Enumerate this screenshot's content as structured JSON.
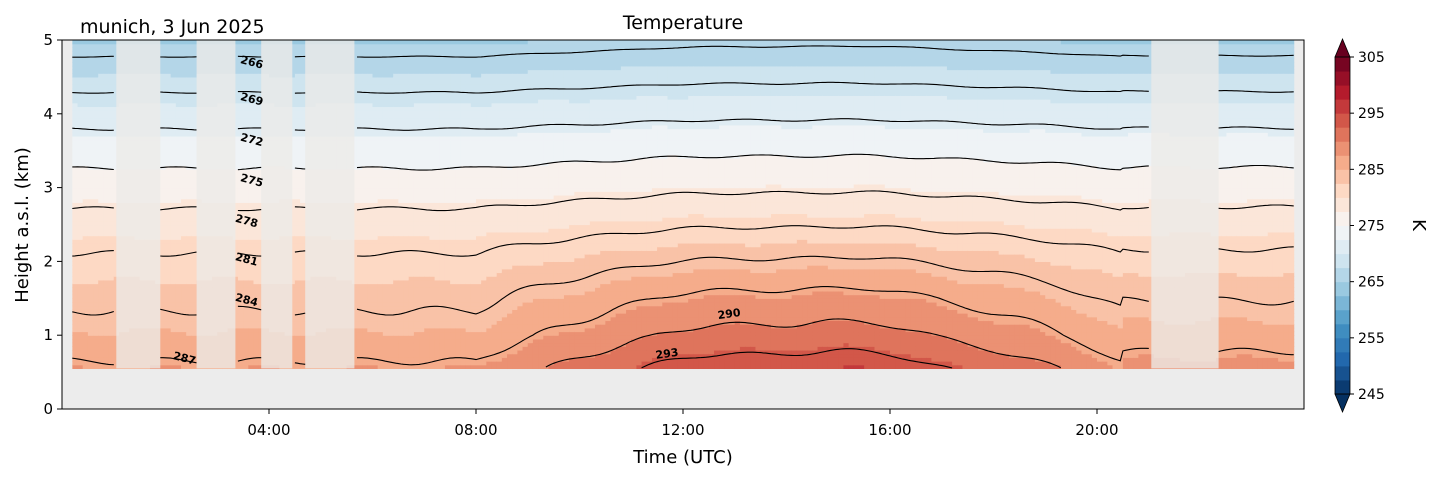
{
  "chart_data": {
    "type": "heatmap",
    "title": "Temperature",
    "subtitle": "munich, 3 Jun 2025",
    "xlabel": "Time (UTC)",
    "ylabel": "Height a.s.l. (km)",
    "xlim_hours": [
      0,
      24
    ],
    "ylim_km": [
      0,
      5
    ],
    "x_ticks": [
      {
        "hour": 4,
        "label": "04:00"
      },
      {
        "hour": 8,
        "label": "08:00"
      },
      {
        "hour": 12,
        "label": "12:00"
      },
      {
        "hour": 16,
        "label": "16:00"
      },
      {
        "hour": 20,
        "label": "20:00"
      }
    ],
    "y_ticks": [
      0,
      1,
      2,
      3,
      4,
      5
    ],
    "data_bottom_km": 0.55,
    "data_top_km": 5,
    "data_start_hour": 0.2,
    "data_end_hour": 23.8,
    "colorbar": {
      "label": "K",
      "min": 245,
      "max": 305,
      "step": 2.5,
      "ticks": [
        245,
        255,
        265,
        275,
        285,
        295,
        305
      ],
      "extend": "both",
      "colormap": "RdBu_r"
    },
    "temperature_profile": {
      "description_units": "K",
      "height_km": [
        0.55,
        1.0,
        1.5,
        2.0,
        2.5,
        3.0,
        3.5,
        4.0,
        4.5,
        5.0
      ],
      "night_temp_K": [
        287.5,
        285.2,
        283.4,
        281.5,
        279.2,
        276.4,
        273.7,
        270.8,
        267.7,
        264.6
      ],
      "afternoon_temp_K": [
        295.0,
        291.2,
        288.0,
        284.4,
        280.8,
        277.6,
        274.6,
        271.5,
        268.5,
        265.5
      ]
    },
    "contour_levels_K": [
      266,
      269,
      272,
      275,
      278,
      281,
      284,
      287,
      290,
      293
    ],
    "contour_labels": [
      {
        "text": "266",
        "hour": 3.65,
        "km": 4.65
      },
      {
        "text": "269",
        "hour": 3.65,
        "km": 4.15
      },
      {
        "text": "272",
        "hour": 3.65,
        "km": 3.6
      },
      {
        "text": "275",
        "hour": 3.65,
        "km": 3.05
      },
      {
        "text": "278",
        "hour": 3.55,
        "km": 2.5
      },
      {
        "text": "281",
        "hour": 3.55,
        "km": 1.98
      },
      {
        "text": "284",
        "hour": 3.55,
        "km": 1.43
      },
      {
        "text": "287",
        "hour": 2.35,
        "km": 0.64
      },
      {
        "text": "290",
        "hour": 12.9,
        "km": 1.24
      },
      {
        "text": "293",
        "hour": 11.7,
        "km": 0.7
      }
    ],
    "masked_periods_hours": [
      [
        1.05,
        1.9
      ],
      [
        2.6,
        3.35
      ],
      [
        3.85,
        4.45
      ],
      [
        4.7,
        5.65
      ],
      [
        21.05,
        22.35
      ]
    ]
  }
}
